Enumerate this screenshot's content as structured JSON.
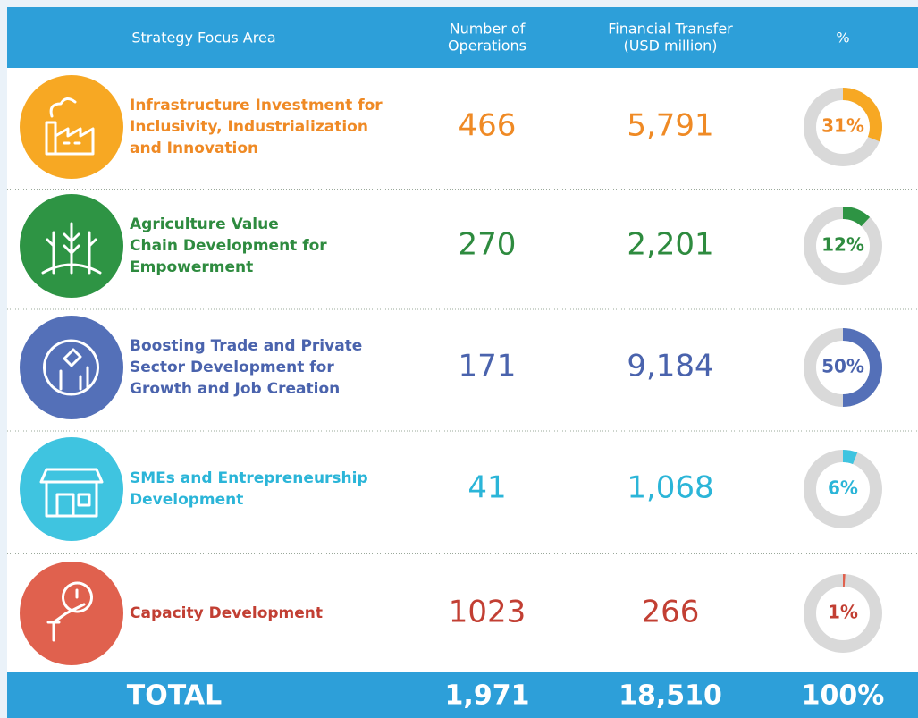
{
  "header": {
    "area": "Strategy Focus Area",
    "operations": [
      "Number of",
      "Operations"
    ],
    "transfer": [
      "Financial Transfer",
      "(USD million)"
    ],
    "percent": "%"
  },
  "rows": [
    {
      "label": [
        "Infrastructure Investment for",
        "Inclusivity, Industrialization",
        "and Innovation"
      ],
      "operations": "466",
      "transfer": "5,791",
      "percent": 31,
      "percent_label": "31%",
      "color": "#f7a823",
      "text_color": "#ef8a25"
    },
    {
      "label": [
        "Agriculture Value",
        "Chain Development for",
        "Empowerment"
      ],
      "operations": "270",
      "transfer": "2,201",
      "percent": 12,
      "percent_label": "12%",
      "color": "#2e9444",
      "text_color": "#2e8b3f"
    },
    {
      "label": [
        "Boosting Trade and Private",
        "Sector Development for",
        "Growth and Job Creation"
      ],
      "operations": "171",
      "transfer": "9,184",
      "percent": 50,
      "percent_label": "50%",
      "color": "#5470b8",
      "text_color": "#4a63ad"
    },
    {
      "label": [
        "SMEs and Entrepreneurship",
        "Development"
      ],
      "operations": "41",
      "transfer": "1,068",
      "percent": 6,
      "percent_label": "6%",
      "color": "#3fc4e0",
      "text_color": "#2bb5d8"
    },
    {
      "label": [
        "Capacity Development"
      ],
      "operations": "1023",
      "transfer": "266",
      "percent": 1,
      "percent_label": "1%",
      "color": "#e0614e",
      "text_color": "#c23f33"
    }
  ],
  "total": {
    "label": "TOTAL",
    "operations": "1,971",
    "transfer": "18,510",
    "percent": "100%"
  }
}
